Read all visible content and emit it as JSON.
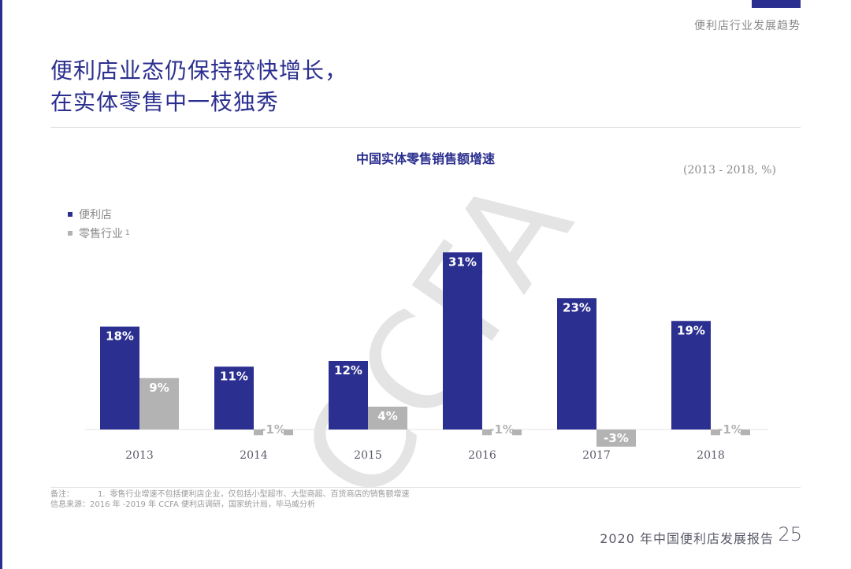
{
  "header": {
    "section_label": "便利店行业发展趋势",
    "headline_line1": "便利店业态仍保持较快增长，",
    "headline_line2": "在实体零售中一枝独秀"
  },
  "chart_data": {
    "type": "bar",
    "title": "中国实体零售销售额增速",
    "unit_note": "(2013 - 2018, %)",
    "categories": [
      "2013",
      "2014",
      "2015",
      "2016",
      "2017",
      "2018"
    ],
    "series": [
      {
        "name": "便利店",
        "color": "#2b2f8f",
        "values": [
          18,
          11,
          12,
          31,
          23,
          19
        ],
        "labels": [
          "18%",
          "11%",
          "12%",
          "31%",
          "23%",
          "19%"
        ]
      },
      {
        "name": "零售行业",
        "name_superscript": "1",
        "color": "#b3b3b3",
        "values": [
          9,
          -1,
          4,
          -1,
          -3,
          -1
        ],
        "labels": [
          "9%",
          "-1%",
          "4%",
          "-1%",
          "-3%",
          "-1%"
        ]
      }
    ],
    "xlabel": "",
    "ylabel": "",
    "ylim": [
      -3,
      31
    ],
    "grid": false,
    "legend_position": "top-left",
    "watermark": "CCFA"
  },
  "footnotes": {
    "note_label": "备注：",
    "note_number": "1.",
    "note_text": "零售行业增速不包括便利店企业，仅包括小型超市、大型商超、百货商店的销售额增速",
    "source_text": "信息来源：2016 年 -2019 年 CCFA 便利店调研，国家统计局，毕马威分析"
  },
  "footer": {
    "report_title": "2020 年中国便利店发展报告",
    "page_number": "25"
  }
}
